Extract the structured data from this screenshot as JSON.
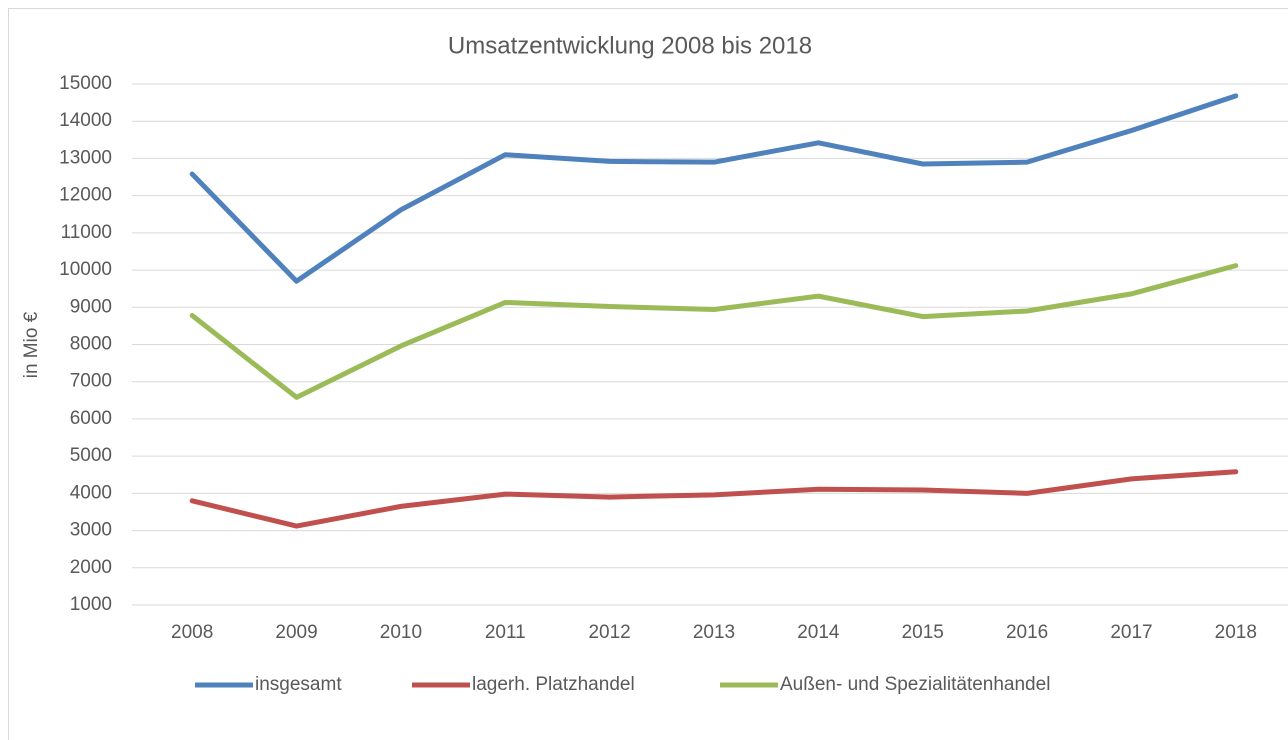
{
  "chart_data": {
    "type": "line",
    "title": "Umsatzentwicklung 2008 bis 2018",
    "y_label": "in Mio €",
    "categories": [
      "2008",
      "2009",
      "2010",
      "2011",
      "2012",
      "2013",
      "2014",
      "2015",
      "2016",
      "2017",
      "2018"
    ],
    "series": [
      {
        "name": "insgesamt",
        "color": "#4f81bd",
        "values": [
          12580,
          9700,
          11620,
          13100,
          12920,
          12900,
          13420,
          12850,
          12900,
          13750,
          14680
        ]
      },
      {
        "name": "lagerh. Platzhandel",
        "color": "#c0504d",
        "values": [
          3800,
          3120,
          3650,
          3980,
          3900,
          3960,
          4110,
          4090,
          4000,
          4390,
          4580
        ]
      },
      {
        "name": "Außen- und Spezialitätenhandel",
        "color": "#9bbb59",
        "values": [
          8780,
          6580,
          7960,
          9130,
          9020,
          8940,
          9300,
          8750,
          8900,
          9360,
          10120
        ]
      }
    ],
    "ylim": [
      1000,
      15000
    ],
    "yticks": [
      1000,
      2000,
      3000,
      4000,
      5000,
      6000,
      7000,
      8000,
      9000,
      10000,
      11000,
      12000,
      13000,
      14000,
      15000
    ],
    "grid": true,
    "legend": "bottom"
  }
}
